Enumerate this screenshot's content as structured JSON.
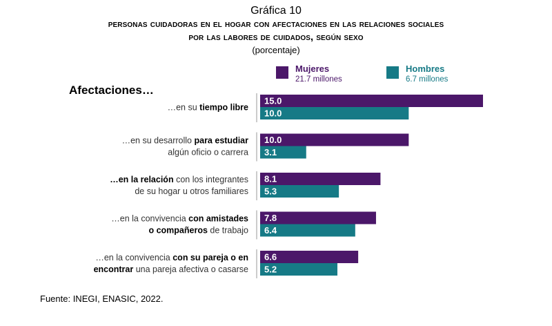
{
  "header": {
    "kicker": "Gráfica 10",
    "title_line1": "Personas cuidadoras en el hogar con afectaciones en las relaciones sociales",
    "title_line2": "por las labores de cuidados, según sexo",
    "subtitle": "(porcentaje)"
  },
  "legend": {
    "women": {
      "label": "Mujeres",
      "sub": "21.7 millones",
      "color": "#4B1769"
    },
    "men": {
      "label": "Hombres",
      "sub": "6.7 millones",
      "color": "#167A86"
    }
  },
  "section_title": "Afectaciones…",
  "source": "Fuente: INEGI, ENASIC, 2022.",
  "chart_data": {
    "type": "bar",
    "orientation": "horizontal",
    "categories": [
      [
        [
          {
            "t": "…en su ",
            "b": false
          },
          {
            "t": "tiempo libre",
            "b": true
          }
        ]
      ],
      [
        [
          {
            "t": "…en su desarrollo ",
            "b": false
          },
          {
            "t": "para estudiar",
            "b": true
          }
        ],
        [
          {
            "t": "algún oficio o carrera",
            "b": false
          }
        ]
      ],
      [
        [
          {
            "t": "…en la relación",
            "b": true
          },
          {
            "t": " con los integrantes",
            "b": false
          }
        ],
        [
          {
            "t": "de su hogar u otros familiares",
            "b": false
          }
        ]
      ],
      [
        [
          {
            "t": "…en la convivencia ",
            "b": false
          },
          {
            "t": "con amistades",
            "b": true
          }
        ],
        [
          {
            "t": "o compañeros",
            "b": true
          },
          {
            "t": " de trabajo",
            "b": false
          }
        ]
      ],
      [
        [
          {
            "t": "…en la convivencia ",
            "b": false
          },
          {
            "t": "con su pareja o en",
            "b": true
          }
        ],
        [
          {
            "t": "encontrar",
            "b": true
          },
          {
            "t": " una pareja afectiva o casarse",
            "b": false
          }
        ]
      ]
    ],
    "series": [
      {
        "name": "Mujeres",
        "values": [
          15.0,
          10.0,
          8.1,
          7.8,
          6.6
        ],
        "labels": [
          "15.0",
          "10.0",
          "8.1",
          "7.8",
          "6.6"
        ]
      },
      {
        "name": "Hombres",
        "values": [
          10.0,
          3.1,
          5.3,
          6.4,
          5.2
        ],
        "labels": [
          "10.0",
          "3.1",
          "5.3",
          "6.4",
          "5.2"
        ]
      }
    ],
    "value_axis_min": 0,
    "value_axis_max": 15.0,
    "grid": false,
    "legend_position": "top"
  }
}
